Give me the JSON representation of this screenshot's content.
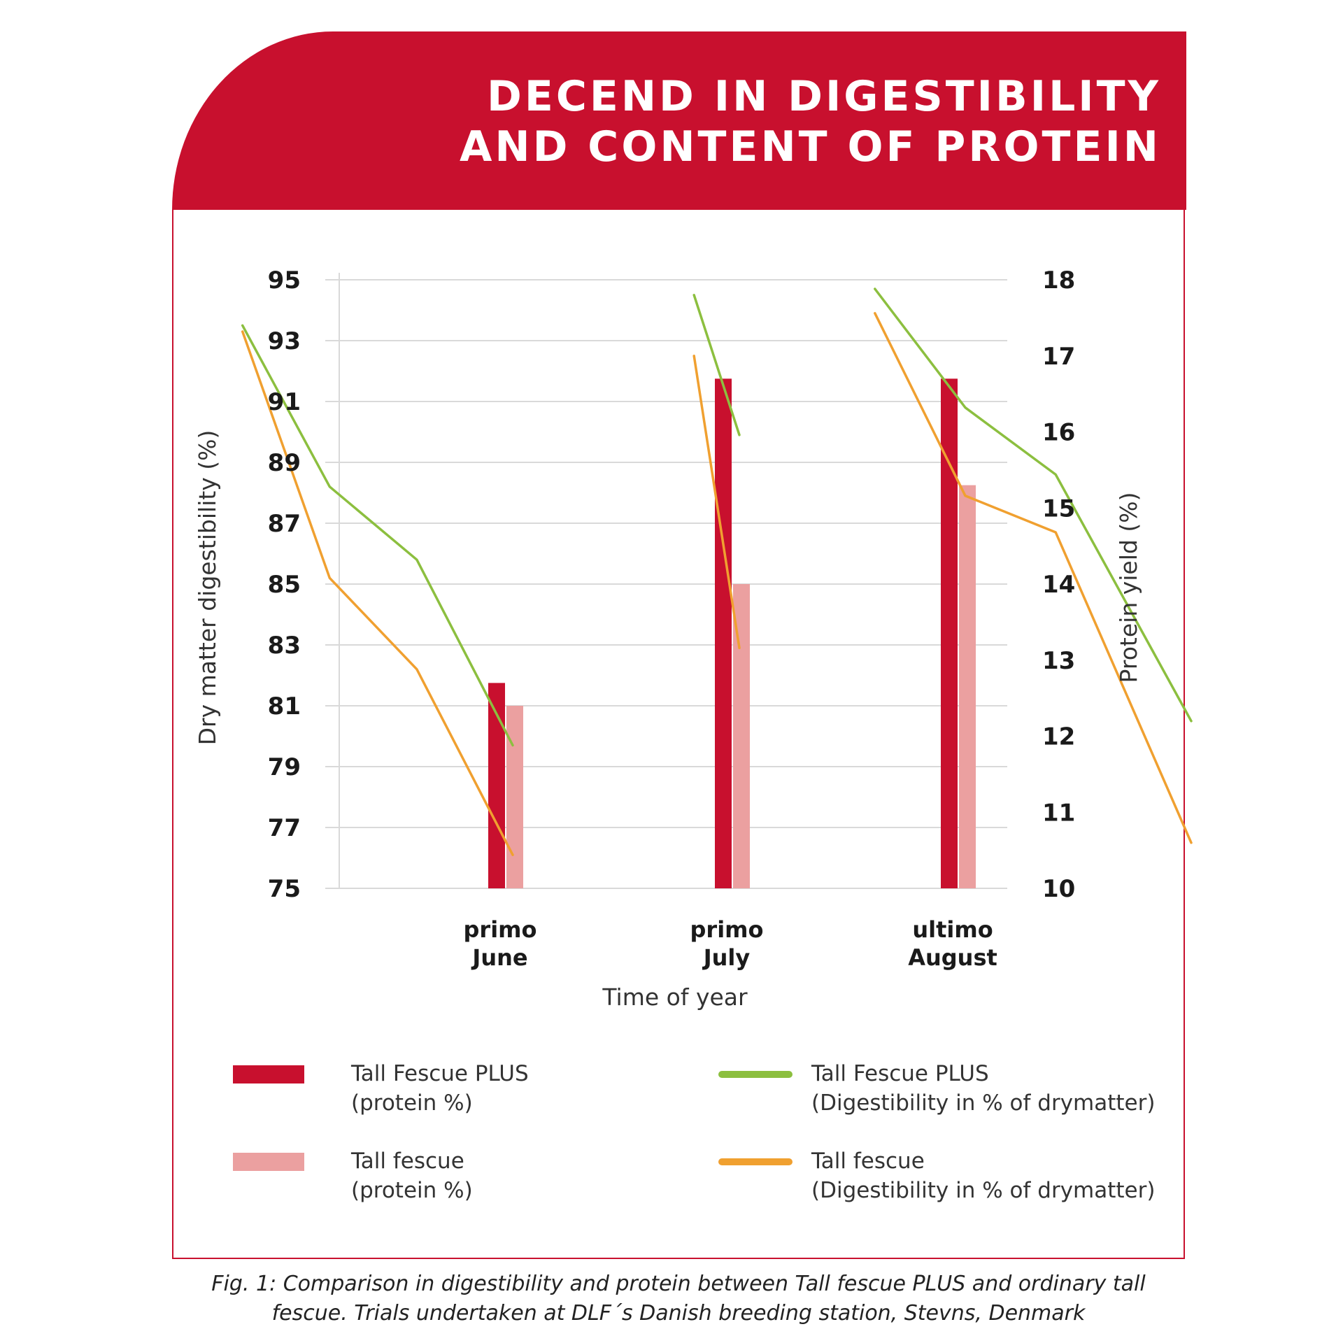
{
  "header": {
    "title_line1": "DECEND IN DIGESTIBILITY",
    "title_line2": "AND CONTENT OF PROTEIN"
  },
  "chart_data": {
    "type": "bar+line",
    "xlabel": "Time of year",
    "ylabel_left": "Dry matter digestibility (%)",
    "ylabel_right": "Protein yield (%)",
    "ylim_left": [
      75,
      95
    ],
    "ylim_right": [
      10,
      18
    ],
    "left_ticks": [
      "95",
      "93",
      "91",
      "89",
      "87",
      "85",
      "83",
      "81",
      "79",
      "77",
      "75"
    ],
    "right_ticks": [
      "18",
      "17",
      "16",
      "15",
      "14",
      "13",
      "12",
      "11",
      "10"
    ],
    "categories": [
      {
        "line1": "primo",
        "line2": "June"
      },
      {
        "line1": "primo",
        "line2": "July"
      },
      {
        "line1": "ultimo",
        "line2": "August"
      }
    ],
    "grid": true,
    "bar_series": [
      {
        "name": "Tall Fescue PLUS (protein %)",
        "color": "#c8102e",
        "values": [
          12.7,
          16.7,
          16.7
        ]
      },
      {
        "name": "Tall fescue (protein %)",
        "color": "#eba0a0",
        "values": [
          12.4,
          14.0,
          15.3
        ]
      }
    ],
    "line_series": [
      {
        "name": "Tall Fescue PLUS (Digestibility in % of drymatter)",
        "color": "#8cbf3f",
        "segments": [
          [
            [
              -3.1,
              93.5
            ],
            [
              -2.1,
              88.2
            ],
            [
              -1.1,
              85.8
            ],
            [
              0,
              79.7
            ]
          ],
          [
            [
              0.8,
              94.5
            ],
            [
              1.0,
              89.9
            ]
          ],
          [
            [
              1.6,
              94.7
            ],
            [
              2.0,
              90.8
            ],
            [
              2.4,
              88.6
            ],
            [
              3.0,
              80.5
            ]
          ]
        ]
      },
      {
        "name": "Tall fescue (Digestibility in % of drymatter)",
        "color": "#f0a030",
        "segments": [
          [
            [
              -3.1,
              93.3
            ],
            [
              -2.1,
              85.2
            ],
            [
              -1.1,
              82.2
            ],
            [
              0,
              76.1
            ]
          ],
          [
            [
              0.8,
              92.5
            ],
            [
              1.0,
              82.9
            ]
          ],
          [
            [
              1.6,
              93.9
            ],
            [
              2.0,
              87.9
            ],
            [
              2.4,
              86.7
            ],
            [
              3.0,
              76.5
            ]
          ]
        ]
      }
    ]
  },
  "legend": {
    "item1_line1": "Tall Fescue PLUS",
    "item1_line2": "(protein %)",
    "item2_line1": "Tall fescue",
    "item2_line2": "(protein %)",
    "item3_line1": "Tall Fescue PLUS",
    "item3_line2": "(Digestibility in % of drymatter)",
    "item4_line1": "Tall fescue",
    "item4_line2": "(Digestibility in % of drymatter)"
  },
  "caption": {
    "line1": "Fig. 1: Comparison in digestibility and protein between Tall fescue PLUS and ordinary tall",
    "line2": "fescue. Trials undertaken at DLF´s Danish breeding station, Stevns, Denmark"
  }
}
